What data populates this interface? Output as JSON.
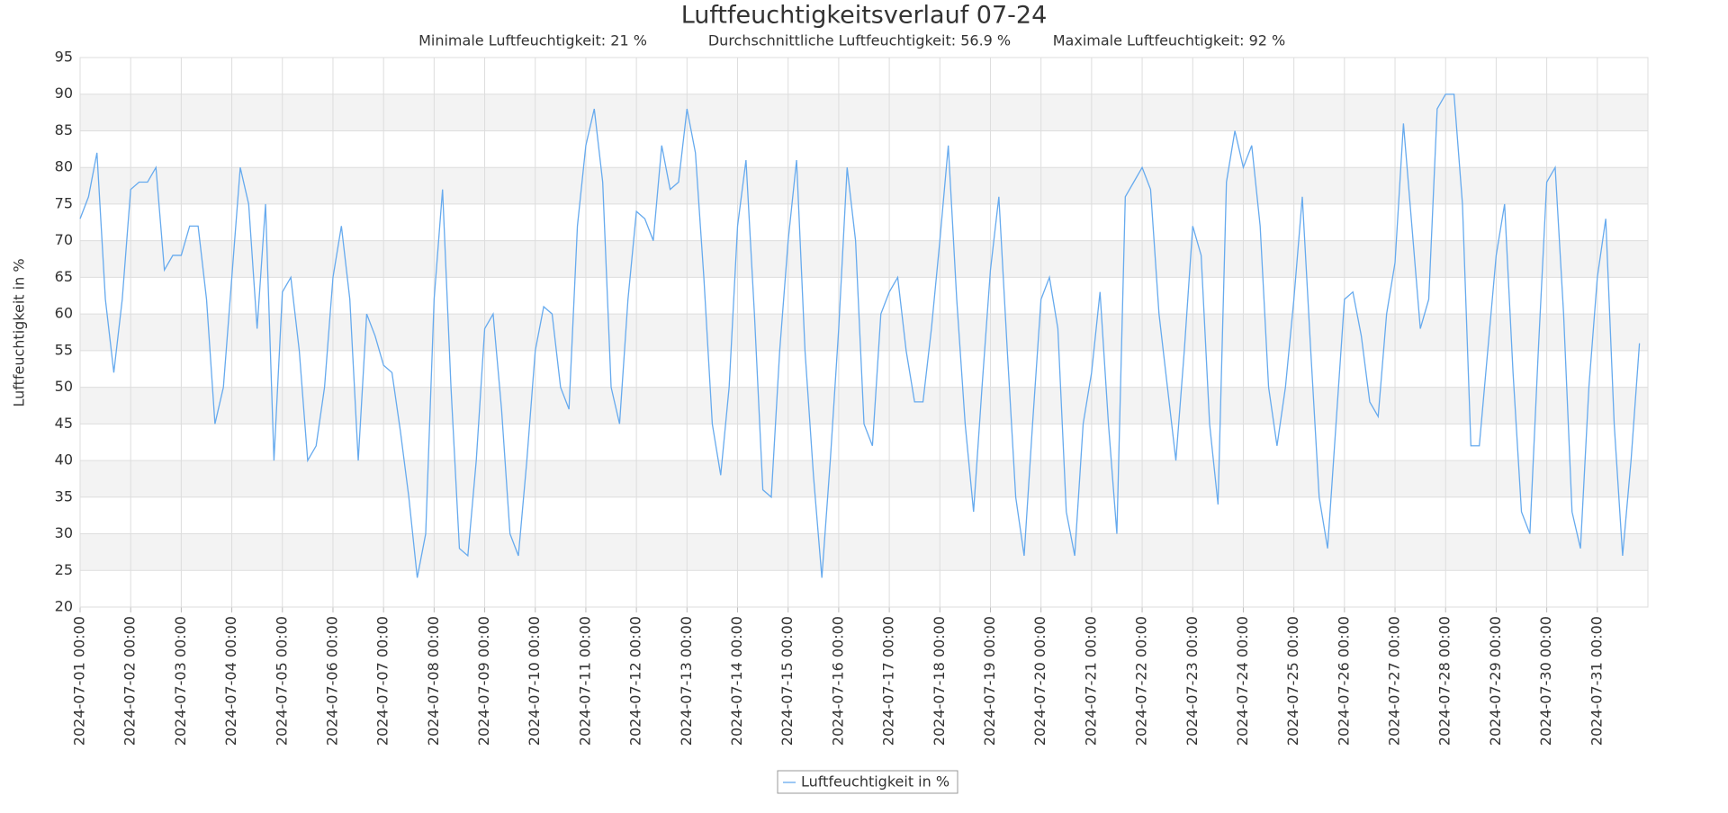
{
  "chart_data": {
    "type": "line",
    "title": "Luftfeuchtigkeitsverlauf 07-24",
    "subtitle": [
      "Minimale Luftfeuchtigkeit: 21 %",
      "Durchschnittliche Luftfeuchtigkeit: 56.9 %",
      "Maximale Luftfeuchtigkeit: 92 %"
    ],
    "y_label": "Luftfeuchtigkeit in %",
    "ylim": [
      20,
      95
    ],
    "yticks": [
      20,
      25,
      30,
      35,
      40,
      45,
      50,
      55,
      60,
      65,
      70,
      75,
      80,
      85,
      90,
      95
    ],
    "xlim": [
      "2024-07-01 00:00",
      "2024-08-01 00:00"
    ],
    "xticks": [
      "2024-07-01 00:00",
      "2024-07-02 00:00",
      "2024-07-03 00:00",
      "2024-07-04 00:00",
      "2024-07-05 00:00",
      "2024-07-06 00:00",
      "2024-07-07 00:00",
      "2024-07-08 00:00",
      "2024-07-09 00:00",
      "2024-07-10 00:00",
      "2024-07-11 00:00",
      "2024-07-12 00:00",
      "2024-07-13 00:00",
      "2024-07-14 00:00",
      "2024-07-15 00:00",
      "2024-07-16 00:00",
      "2024-07-17 00:00",
      "2024-07-18 00:00",
      "2024-07-19 00:00",
      "2024-07-20 00:00",
      "2024-07-21 00:00",
      "2024-07-22 00:00",
      "2024-07-23 00:00",
      "2024-07-24 00:00",
      "2024-07-25 00:00",
      "2024-07-26 00:00",
      "2024-07-27 00:00",
      "2024-07-28 00:00",
      "2024-07-29 00:00",
      "2024-07-30 00:00",
      "2024-07-31 00:00"
    ],
    "grid": true,
    "legend": "bottom",
    "x": [
      "2024-07-01 00:00",
      "2024-07-01 04:00",
      "2024-07-01 08:00",
      "2024-07-01 12:00",
      "2024-07-01 16:00",
      "2024-07-01 20:00",
      "2024-07-02 00:00",
      "2024-07-02 04:00",
      "2024-07-02 08:00",
      "2024-07-02 12:00",
      "2024-07-02 16:00",
      "2024-07-02 20:00",
      "2024-07-03 00:00",
      "2024-07-03 04:00",
      "2024-07-03 08:00",
      "2024-07-03 12:00",
      "2024-07-03 16:00",
      "2024-07-03 20:00",
      "2024-07-04 00:00",
      "2024-07-04 04:00",
      "2024-07-04 08:00",
      "2024-07-04 12:00",
      "2024-07-04 16:00",
      "2024-07-04 20:00",
      "2024-07-05 00:00",
      "2024-07-05 04:00",
      "2024-07-05 08:00",
      "2024-07-05 12:00",
      "2024-07-05 16:00",
      "2024-07-05 20:00",
      "2024-07-06 00:00",
      "2024-07-06 04:00",
      "2024-07-06 08:00",
      "2024-07-06 12:00",
      "2024-07-06 16:00",
      "2024-07-06 20:00",
      "2024-07-07 00:00",
      "2024-07-07 04:00",
      "2024-07-07 08:00",
      "2024-07-07 12:00",
      "2024-07-07 16:00",
      "2024-07-07 20:00",
      "2024-07-08 00:00",
      "2024-07-08 04:00",
      "2024-07-08 08:00",
      "2024-07-08 12:00",
      "2024-07-08 16:00",
      "2024-07-08 20:00",
      "2024-07-09 00:00",
      "2024-07-09 04:00",
      "2024-07-09 08:00",
      "2024-07-09 12:00",
      "2024-07-09 16:00",
      "2024-07-09 20:00",
      "2024-07-10 00:00",
      "2024-07-10 04:00",
      "2024-07-10 08:00",
      "2024-07-10 12:00",
      "2024-07-10 16:00",
      "2024-07-10 20:00",
      "2024-07-11 00:00",
      "2024-07-11 04:00",
      "2024-07-11 08:00",
      "2024-07-11 12:00",
      "2024-07-11 16:00",
      "2024-07-11 20:00",
      "2024-07-12 00:00",
      "2024-07-12 04:00",
      "2024-07-12 08:00",
      "2024-07-12 12:00",
      "2024-07-12 16:00",
      "2024-07-12 20:00",
      "2024-07-13 00:00",
      "2024-07-13 04:00",
      "2024-07-13 08:00",
      "2024-07-13 12:00",
      "2024-07-13 16:00",
      "2024-07-13 20:00",
      "2024-07-14 00:00",
      "2024-07-14 04:00",
      "2024-07-14 08:00",
      "2024-07-14 12:00",
      "2024-07-14 16:00",
      "2024-07-14 20:00",
      "2024-07-15 00:00",
      "2024-07-15 04:00",
      "2024-07-15 08:00",
      "2024-07-15 12:00",
      "2024-07-15 16:00",
      "2024-07-15 20:00",
      "2024-07-16 00:00",
      "2024-07-16 04:00",
      "2024-07-16 08:00",
      "2024-07-16 12:00",
      "2024-07-16 16:00",
      "2024-07-16 20:00",
      "2024-07-17 00:00",
      "2024-07-17 04:00",
      "2024-07-17 08:00",
      "2024-07-17 12:00",
      "2024-07-17 16:00",
      "2024-07-17 20:00",
      "2024-07-18 00:00",
      "2024-07-18 04:00",
      "2024-07-18 08:00",
      "2024-07-18 12:00",
      "2024-07-18 16:00",
      "2024-07-18 20:00",
      "2024-07-19 00:00",
      "2024-07-19 04:00",
      "2024-07-19 08:00",
      "2024-07-19 12:00",
      "2024-07-19 16:00",
      "2024-07-19 20:00",
      "2024-07-20 00:00",
      "2024-07-20 04:00",
      "2024-07-20 08:00",
      "2024-07-20 12:00",
      "2024-07-20 16:00",
      "2024-07-20 20:00",
      "2024-07-21 00:00",
      "2024-07-21 04:00",
      "2024-07-21 08:00",
      "2024-07-21 12:00",
      "2024-07-21 16:00",
      "2024-07-21 20:00",
      "2024-07-22 00:00",
      "2024-07-22 04:00",
      "2024-07-22 08:00",
      "2024-07-22 12:00",
      "2024-07-22 16:00",
      "2024-07-22 20:00",
      "2024-07-23 00:00",
      "2024-07-23 04:00",
      "2024-07-23 08:00",
      "2024-07-23 12:00",
      "2024-07-23 16:00",
      "2024-07-23 20:00",
      "2024-07-24 00:00",
      "2024-07-24 04:00",
      "2024-07-24 08:00",
      "2024-07-24 12:00",
      "2024-07-24 16:00",
      "2024-07-24 20:00",
      "2024-07-25 00:00",
      "2024-07-25 04:00",
      "2024-07-25 08:00",
      "2024-07-25 12:00",
      "2024-07-25 16:00",
      "2024-07-25 20:00",
      "2024-07-26 00:00",
      "2024-07-26 04:00",
      "2024-07-26 08:00",
      "2024-07-26 12:00",
      "2024-07-26 16:00",
      "2024-07-26 20:00",
      "2024-07-27 00:00",
      "2024-07-27 04:00",
      "2024-07-27 08:00",
      "2024-07-27 12:00",
      "2024-07-27 16:00",
      "2024-07-27 20:00",
      "2024-07-28 00:00",
      "2024-07-28 04:00",
      "2024-07-28 08:00",
      "2024-07-28 12:00",
      "2024-07-28 16:00",
      "2024-07-28 20:00",
      "2024-07-29 00:00",
      "2024-07-29 04:00",
      "2024-07-29 08:00",
      "2024-07-29 12:00",
      "2024-07-29 16:00",
      "2024-07-29 20:00",
      "2024-07-30 00:00",
      "2024-07-30 04:00",
      "2024-07-30 08:00",
      "2024-07-30 12:00",
      "2024-07-30 16:00",
      "2024-07-30 20:00",
      "2024-07-31 00:00",
      "2024-07-31 04:00",
      "2024-07-31 08:00",
      "2024-07-31 12:00",
      "2024-07-31 16:00",
      "2024-07-31 20:00"
    ],
    "series": [
      {
        "name": "Luftfeuchtigkeit in %",
        "color": "#66aaee",
        "values": [
          73,
          76,
          82,
          62,
          52,
          62,
          77,
          78,
          78,
          80,
          66,
          68,
          68,
          72,
          72,
          62,
          45,
          50,
          65,
          80,
          75,
          58,
          75,
          40,
          63,
          65,
          55,
          40,
          42,
          50,
          65,
          72,
          62,
          40,
          60,
          57,
          53,
          52,
          44,
          35,
          24,
          30,
          62,
          77,
          50,
          28,
          27,
          40,
          58,
          60,
          47,
          30,
          27,
          40,
          55,
          61,
          60,
          50,
          47,
          72,
          83,
          88,
          78,
          50,
          45,
          62,
          74,
          73,
          70,
          83,
          77,
          78,
          88,
          82,
          65,
          45,
          38,
          50,
          72,
          81,
          60,
          36,
          35,
          55,
          70,
          81,
          55,
          38,
          24,
          40,
          58,
          80,
          70,
          45,
          42,
          60,
          63,
          65,
          55,
          48,
          48,
          58,
          70,
          83,
          62,
          45,
          33,
          50,
          66,
          76,
          55,
          35,
          27,
          45,
          62,
          65,
          58,
          33,
          27,
          45,
          52,
          63,
          45,
          30,
          76,
          78,
          80,
          77,
          60,
          50,
          40,
          55,
          72,
          68,
          45,
          34,
          78,
          85,
          80,
          83,
          72,
          50,
          42,
          50,
          62,
          76,
          55,
          35,
          28,
          45,
          62,
          63,
          57,
          48,
          46,
          60,
          67,
          86,
          72,
          58,
          62,
          88,
          90,
          90,
          75,
          42,
          42,
          55,
          68,
          75,
          52,
          33,
          30,
          55,
          78,
          80,
          60,
          33,
          28,
          50,
          65,
          73,
          45,
          27,
          40,
          56
        ]
      }
    ]
  }
}
